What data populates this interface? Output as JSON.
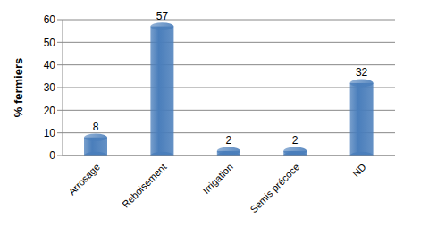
{
  "chart_data": {
    "type": "bar",
    "categories": [
      "Arrosage",
      "Reboisement",
      "Irrigation",
      "Semis précoce",
      "ND"
    ],
    "values": [
      8,
      57,
      2,
      2,
      32
    ],
    "color": "#4a7ebb",
    "y_label": "% fermiers",
    "ylim": [
      0,
      60
    ],
    "yticks": [
      0,
      10,
      20,
      30,
      40,
      50,
      60
    ],
    "grid": true,
    "data_labels": true
  }
}
